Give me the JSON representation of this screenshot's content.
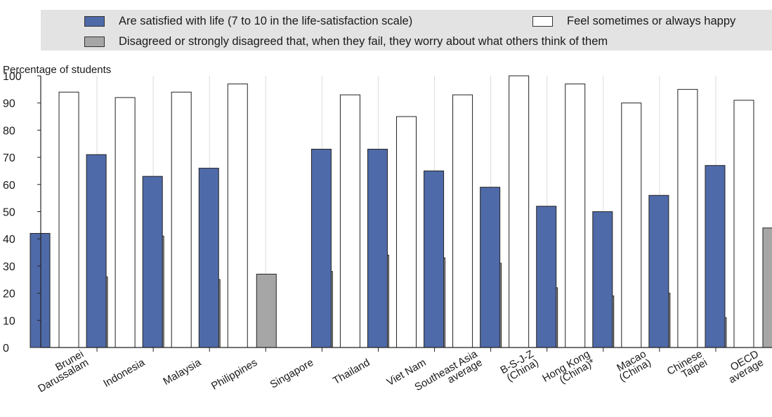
{
  "chart_data": {
    "type": "bar",
    "ylabel": "Percentage of students",
    "ylim": [
      0,
      100
    ],
    "yticks": [
      0,
      10,
      20,
      30,
      40,
      50,
      60,
      70,
      80,
      90,
      100
    ],
    "grid": "vertical separators between categories",
    "legend_position": "top",
    "categories": [
      [
        "Brunei",
        "Darussalam"
      ],
      [
        "Indonesia"
      ],
      [
        "Malaysia"
      ],
      [
        "Philippines"
      ],
      [
        "Singapore"
      ],
      [
        "Thailand"
      ],
      [
        "Viet Nam"
      ],
      [
        "Southeast Asia",
        "average"
      ],
      [
        "B-S-J-Z",
        "(China)"
      ],
      [
        "Hong Kong",
        "(China)*"
      ],
      [
        "Macao",
        "(China)"
      ],
      [
        "Chinese",
        "Taipei"
      ],
      [
        "OECD",
        "average"
      ]
    ],
    "series": [
      {
        "name": "Are satisfied with life (7 to 10 in the life-satisfaction scale)",
        "color": "#4f6aa8",
        "values": [
          42,
          71,
          63,
          66,
          null,
          73,
          73,
          65,
          59,
          52,
          50,
          56,
          67
        ]
      },
      {
        "name": "Feel sometimes or always happy",
        "color": "#ffffff",
        "values": [
          94,
          92,
          94,
          97,
          null,
          93,
          85,
          93,
          100,
          97,
          90,
          95,
          91
        ]
      },
      {
        "name": "Disagreed or strongly disagreed that, when they fail, they worry about what others think of them",
        "color": "#a6a6a6",
        "values": [
          26,
          41,
          25,
          27,
          28,
          34,
          33,
          31,
          22,
          19,
          20,
          11,
          44
        ]
      }
    ]
  }
}
